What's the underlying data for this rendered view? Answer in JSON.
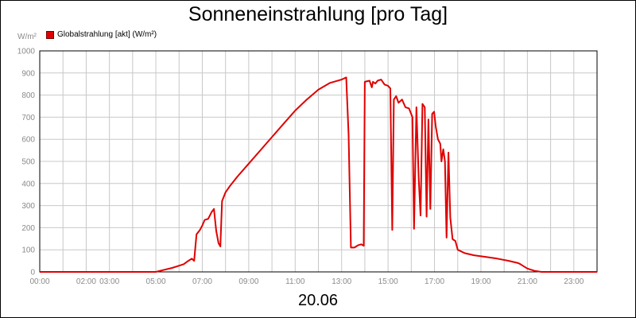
{
  "chart_data": {
    "type": "line",
    "title": "Sonneneinstrahlung [pro Tag]",
    "unit_label": "W/m²",
    "date_label": "20.06",
    "series": [
      {
        "name": "Globalstrahlung [akt] (W/m²)",
        "color": "#e00000",
        "points": [
          [
            0,
            0
          ],
          [
            5.0,
            0
          ],
          [
            5.3,
            8
          ],
          [
            5.7,
            18
          ],
          [
            6.0,
            28
          ],
          [
            6.2,
            35
          ],
          [
            6.4,
            50
          ],
          [
            6.55,
            60
          ],
          [
            6.65,
            50
          ],
          [
            6.75,
            170
          ],
          [
            6.9,
            190
          ],
          [
            7.0,
            210
          ],
          [
            7.1,
            235
          ],
          [
            7.25,
            240
          ],
          [
            7.4,
            270
          ],
          [
            7.5,
            285
          ],
          [
            7.6,
            185
          ],
          [
            7.7,
            130
          ],
          [
            7.78,
            115
          ],
          [
            7.85,
            320
          ],
          [
            8.0,
            360
          ],
          [
            8.2,
            390
          ],
          [
            8.5,
            430
          ],
          [
            9.0,
            490
          ],
          [
            9.5,
            550
          ],
          [
            10.0,
            610
          ],
          [
            10.5,
            670
          ],
          [
            11.0,
            730
          ],
          [
            11.5,
            780
          ],
          [
            12.0,
            825
          ],
          [
            12.5,
            855
          ],
          [
            13.0,
            870
          ],
          [
            13.2,
            880
          ],
          [
            13.3,
            620
          ],
          [
            13.4,
            110
          ],
          [
            13.55,
            110
          ],
          [
            13.7,
            120
          ],
          [
            13.85,
            125
          ],
          [
            13.95,
            118
          ],
          [
            14.0,
            860
          ],
          [
            14.2,
            865
          ],
          [
            14.3,
            835
          ],
          [
            14.35,
            860
          ],
          [
            14.45,
            852
          ],
          [
            14.55,
            865
          ],
          [
            14.7,
            870
          ],
          [
            14.85,
            848
          ],
          [
            15.0,
            842
          ],
          [
            15.1,
            830
          ],
          [
            15.18,
            190
          ],
          [
            15.25,
            780
          ],
          [
            15.35,
            795
          ],
          [
            15.45,
            765
          ],
          [
            15.6,
            780
          ],
          [
            15.75,
            745
          ],
          [
            15.9,
            740
          ],
          [
            16.05,
            700
          ],
          [
            16.12,
            195
          ],
          [
            16.22,
            745
          ],
          [
            16.32,
            420
          ],
          [
            16.4,
            255
          ],
          [
            16.48,
            760
          ],
          [
            16.58,
            745
          ],
          [
            16.66,
            250
          ],
          [
            16.74,
            690
          ],
          [
            16.82,
            285
          ],
          [
            16.9,
            715
          ],
          [
            16.98,
            725
          ],
          [
            17.05,
            660
          ],
          [
            17.15,
            600
          ],
          [
            17.25,
            580
          ],
          [
            17.3,
            500
          ],
          [
            17.38,
            555
          ],
          [
            17.45,
            500
          ],
          [
            17.52,
            155
          ],
          [
            17.6,
            540
          ],
          [
            17.68,
            245
          ],
          [
            17.78,
            148
          ],
          [
            17.9,
            140
          ],
          [
            18.0,
            100
          ],
          [
            18.3,
            85
          ],
          [
            18.7,
            75
          ],
          [
            19.2,
            68
          ],
          [
            19.7,
            60
          ],
          [
            20.2,
            50
          ],
          [
            20.6,
            40
          ],
          [
            20.7,
            35
          ],
          [
            20.8,
            28
          ],
          [
            21.0,
            15
          ],
          [
            21.3,
            5
          ],
          [
            21.6,
            0
          ],
          [
            24.0,
            0
          ]
        ]
      }
    ],
    "x_ticks": [
      {
        "value": 0,
        "label": "00:00"
      },
      {
        "value": 2,
        "label": "02:00"
      },
      {
        "value": 3,
        "label": "03:00"
      },
      {
        "value": 5,
        "label": "05:00"
      },
      {
        "value": 7,
        "label": "07:00"
      },
      {
        "value": 9,
        "label": "09:00"
      },
      {
        "value": 11,
        "label": "11:00"
      },
      {
        "value": 13,
        "label": "13:00"
      },
      {
        "value": 15,
        "label": "15:00"
      },
      {
        "value": 17,
        "label": "17:00"
      },
      {
        "value": 19,
        "label": "19:00"
      },
      {
        "value": 21,
        "label": "21:00"
      },
      {
        "value": 23,
        "label": "23:00"
      }
    ],
    "y_ticks": [
      0,
      100,
      200,
      300,
      400,
      500,
      600,
      700,
      800,
      900,
      1000
    ],
    "xlim": [
      0,
      24
    ],
    "ylim": [
      0,
      1000
    ],
    "grid": true,
    "legend_position": "top-left",
    "grid_color": "#c8c8c8"
  }
}
